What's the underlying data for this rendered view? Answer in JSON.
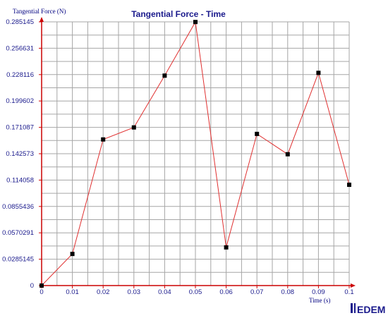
{
  "chart_data": {
    "type": "line",
    "title": "Tangential Force - Time",
    "xlabel": "Time (s)",
    "ylabel": "Tangential Force (N)",
    "x_ticks": [
      "0",
      "0.01",
      "0.02",
      "0.03",
      "0.04",
      "0.05",
      "0.06",
      "0.07",
      "0.08",
      "0.09",
      "0.1"
    ],
    "y_ticks": [
      "0",
      "0.0285145",
      "0.0570291",
      "0.0855436",
      "0.114058",
      "0.142573",
      "0.171087",
      "0.199602",
      "0.228116",
      "0.256631",
      "0.285145"
    ],
    "xlim": [
      0,
      0.1
    ],
    "ylim": [
      0,
      0.285145
    ],
    "grid": true,
    "minor_x_divisions": 2,
    "series": [
      {
        "x": [
          0,
          0.01,
          0.02,
          0.03,
          0.04,
          0.05,
          0.06,
          0.07,
          0.08,
          0.09,
          0.1
        ],
        "y": [
          0,
          0.0342,
          0.158,
          0.171,
          0.227,
          0.285,
          0.0413,
          0.164,
          0.142,
          0.23,
          0.109
        ],
        "color": "#e03030",
        "marker": "square",
        "marker_color": "#000000"
      }
    ]
  },
  "colors": {
    "axis": "#cc0000",
    "grid": "#a6a6a6",
    "title": "#1a1a8c",
    "tick_label": "#1a1a8c",
    "axis_label": "#000080",
    "logo": "#1a1a8c"
  },
  "logo": {
    "text": "EDEM"
  }
}
